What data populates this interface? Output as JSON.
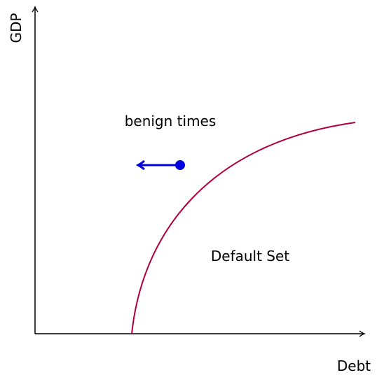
{
  "diagram": {
    "y_axis_label": "GDP",
    "x_axis_label": "Debt",
    "region_labels": [
      "benign times",
      "Default Set"
    ]
  }
}
